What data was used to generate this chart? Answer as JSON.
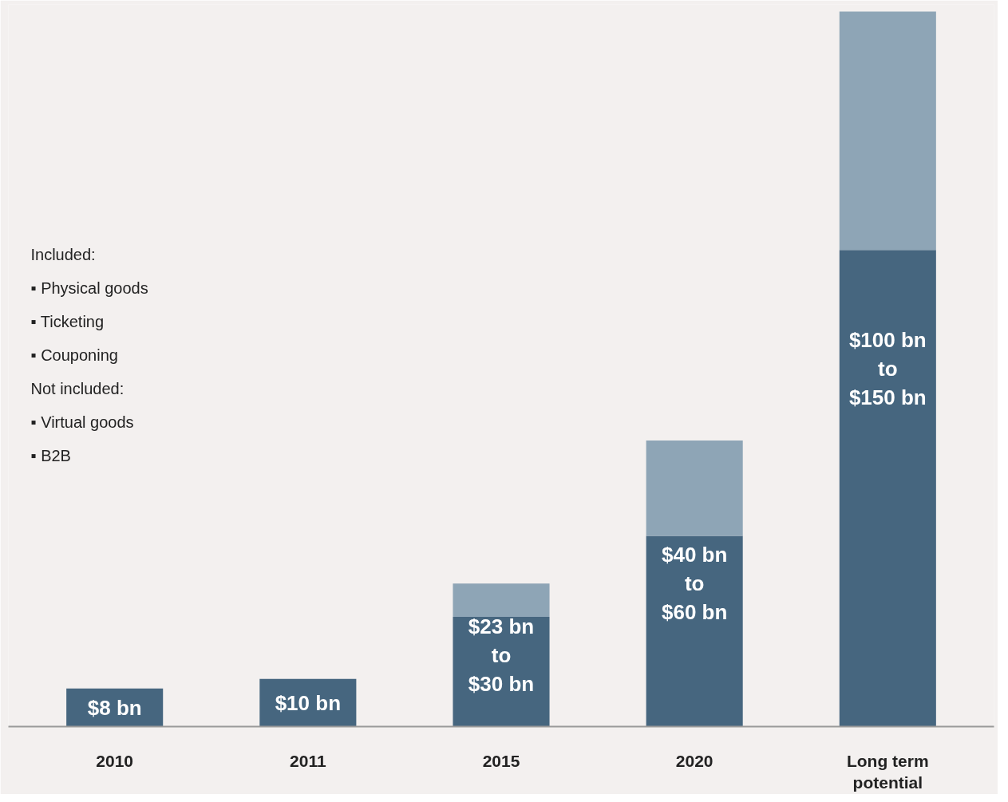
{
  "chart_data": {
    "type": "bar",
    "stacked": true,
    "categories": [
      "2010",
      "2011",
      "2015",
      "2020",
      "Long term\npotential"
    ],
    "series": [
      {
        "color": "#46667f",
        "values": [
          8,
          10,
          23,
          40,
          100
        ],
        "value_labels": [
          "$8 bn",
          "$10 bn",
          null,
          null,
          null
        ]
      },
      {
        "color": "#8ea5b6",
        "values": [
          null,
          null,
          7,
          20,
          50
        ]
      }
    ],
    "annotations": [
      "Included:",
      "▪ Physical goods",
      "▪ Ticketing",
      "▪ Couponing",
      "Not included:",
      "▪ Virtual goods",
      "▪ B2B",
      "$23 bn\nto\n$30 bn",
      "$40 bn\nto\n$60 bn",
      "$100 bn\nto\n$150 bn"
    ],
    "grid": false
  }
}
